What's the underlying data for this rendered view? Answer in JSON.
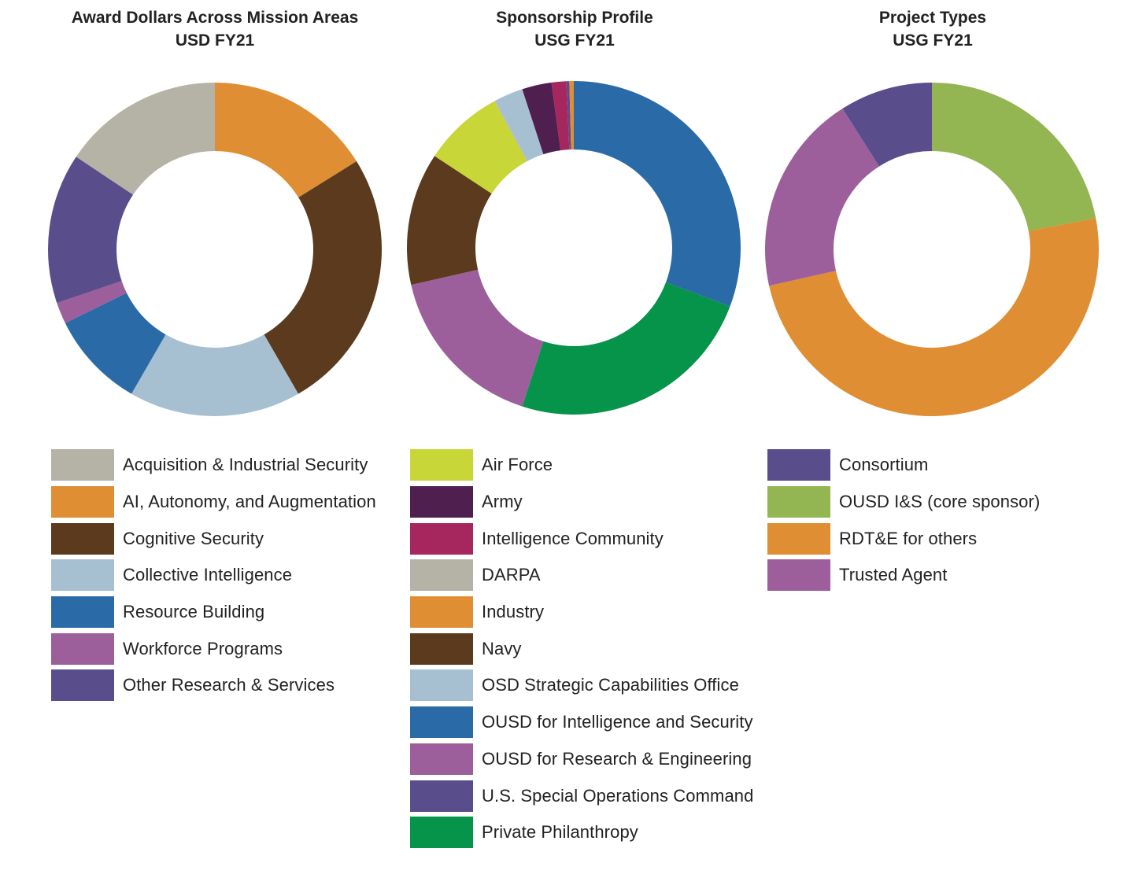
{
  "chart_data": [
    {
      "type": "pie",
      "title": "Award Dollars Across Mission Areas",
      "subtitle": "USD FY21",
      "legend_position": "bottom",
      "categories": [
        "Acquisition & Industrial Security",
        "AI, Autonomy, and Augmentation",
        "Cognitive Security",
        "Collective Intelligence",
        "Resource Building",
        "Workforce Programs",
        "Other Research & Services"
      ],
      "colors": [
        "#b5b2a6",
        "#e08e33",
        "#5b3a1e",
        "#a6c0d1",
        "#2a6aa6",
        "#9c5f9b",
        "#594d8c"
      ],
      "legend_order": [
        0,
        1,
        2,
        3,
        4,
        5,
        6
      ],
      "plot_order": [
        1,
        2,
        3,
        4,
        5,
        6,
        0
      ],
      "values": [
        15,
        15.5,
        24.5,
        16,
        9,
        2,
        14
      ]
    },
    {
      "type": "pie",
      "title": "Sponsorship Profile",
      "subtitle": "USG FY21",
      "legend_position": "bottom",
      "categories": [
        "Air Force",
        "Army",
        "Intelligence Community",
        "DARPA",
        "Industry",
        "Navy",
        "OSD Strategic Capabilities Office",
        "OUSD for Intelligence and Security",
        "OUSD for Research & Engineering",
        "U.S. Special Operations Command",
        "Private Philanthropy"
      ],
      "colors": [
        "#c8d637",
        "#4f1f4f",
        "#a6265e",
        "#b5b2a6",
        "#e08e33",
        "#5b3a1e",
        "#a6c0d1",
        "#2a6aa6",
        "#9c5f9b",
        "#594d8c",
        "#06934a"
      ],
      "legend_order": [
        0,
        1,
        2,
        3,
        4,
        5,
        6,
        7,
        8,
        9,
        10
      ],
      "plot_order": [
        3,
        7,
        10,
        8,
        5,
        0,
        6,
        1,
        2,
        9,
        4
      ],
      "values": [
        5.5,
        2,
        1,
        0,
        0.3,
        9.0,
        2,
        21.5,
        11.5,
        0.2,
        17
      ]
    },
    {
      "type": "pie",
      "title": "Project Types",
      "subtitle": "USG FY21",
      "legend_position": "bottom",
      "categories": [
        "Consortium",
        "OUSD I&S (core sponsor)",
        "RDT&E for others",
        "Trusted Agent"
      ],
      "colors": [
        "#594d8c",
        "#93b552",
        "#e08e33",
        "#9c5f9b"
      ],
      "legend_order": [
        0,
        1,
        2,
        3
      ],
      "plot_order": [
        1,
        2,
        3,
        0
      ],
      "values": [
        9,
        22,
        49.5,
        19.5
      ]
    }
  ]
}
